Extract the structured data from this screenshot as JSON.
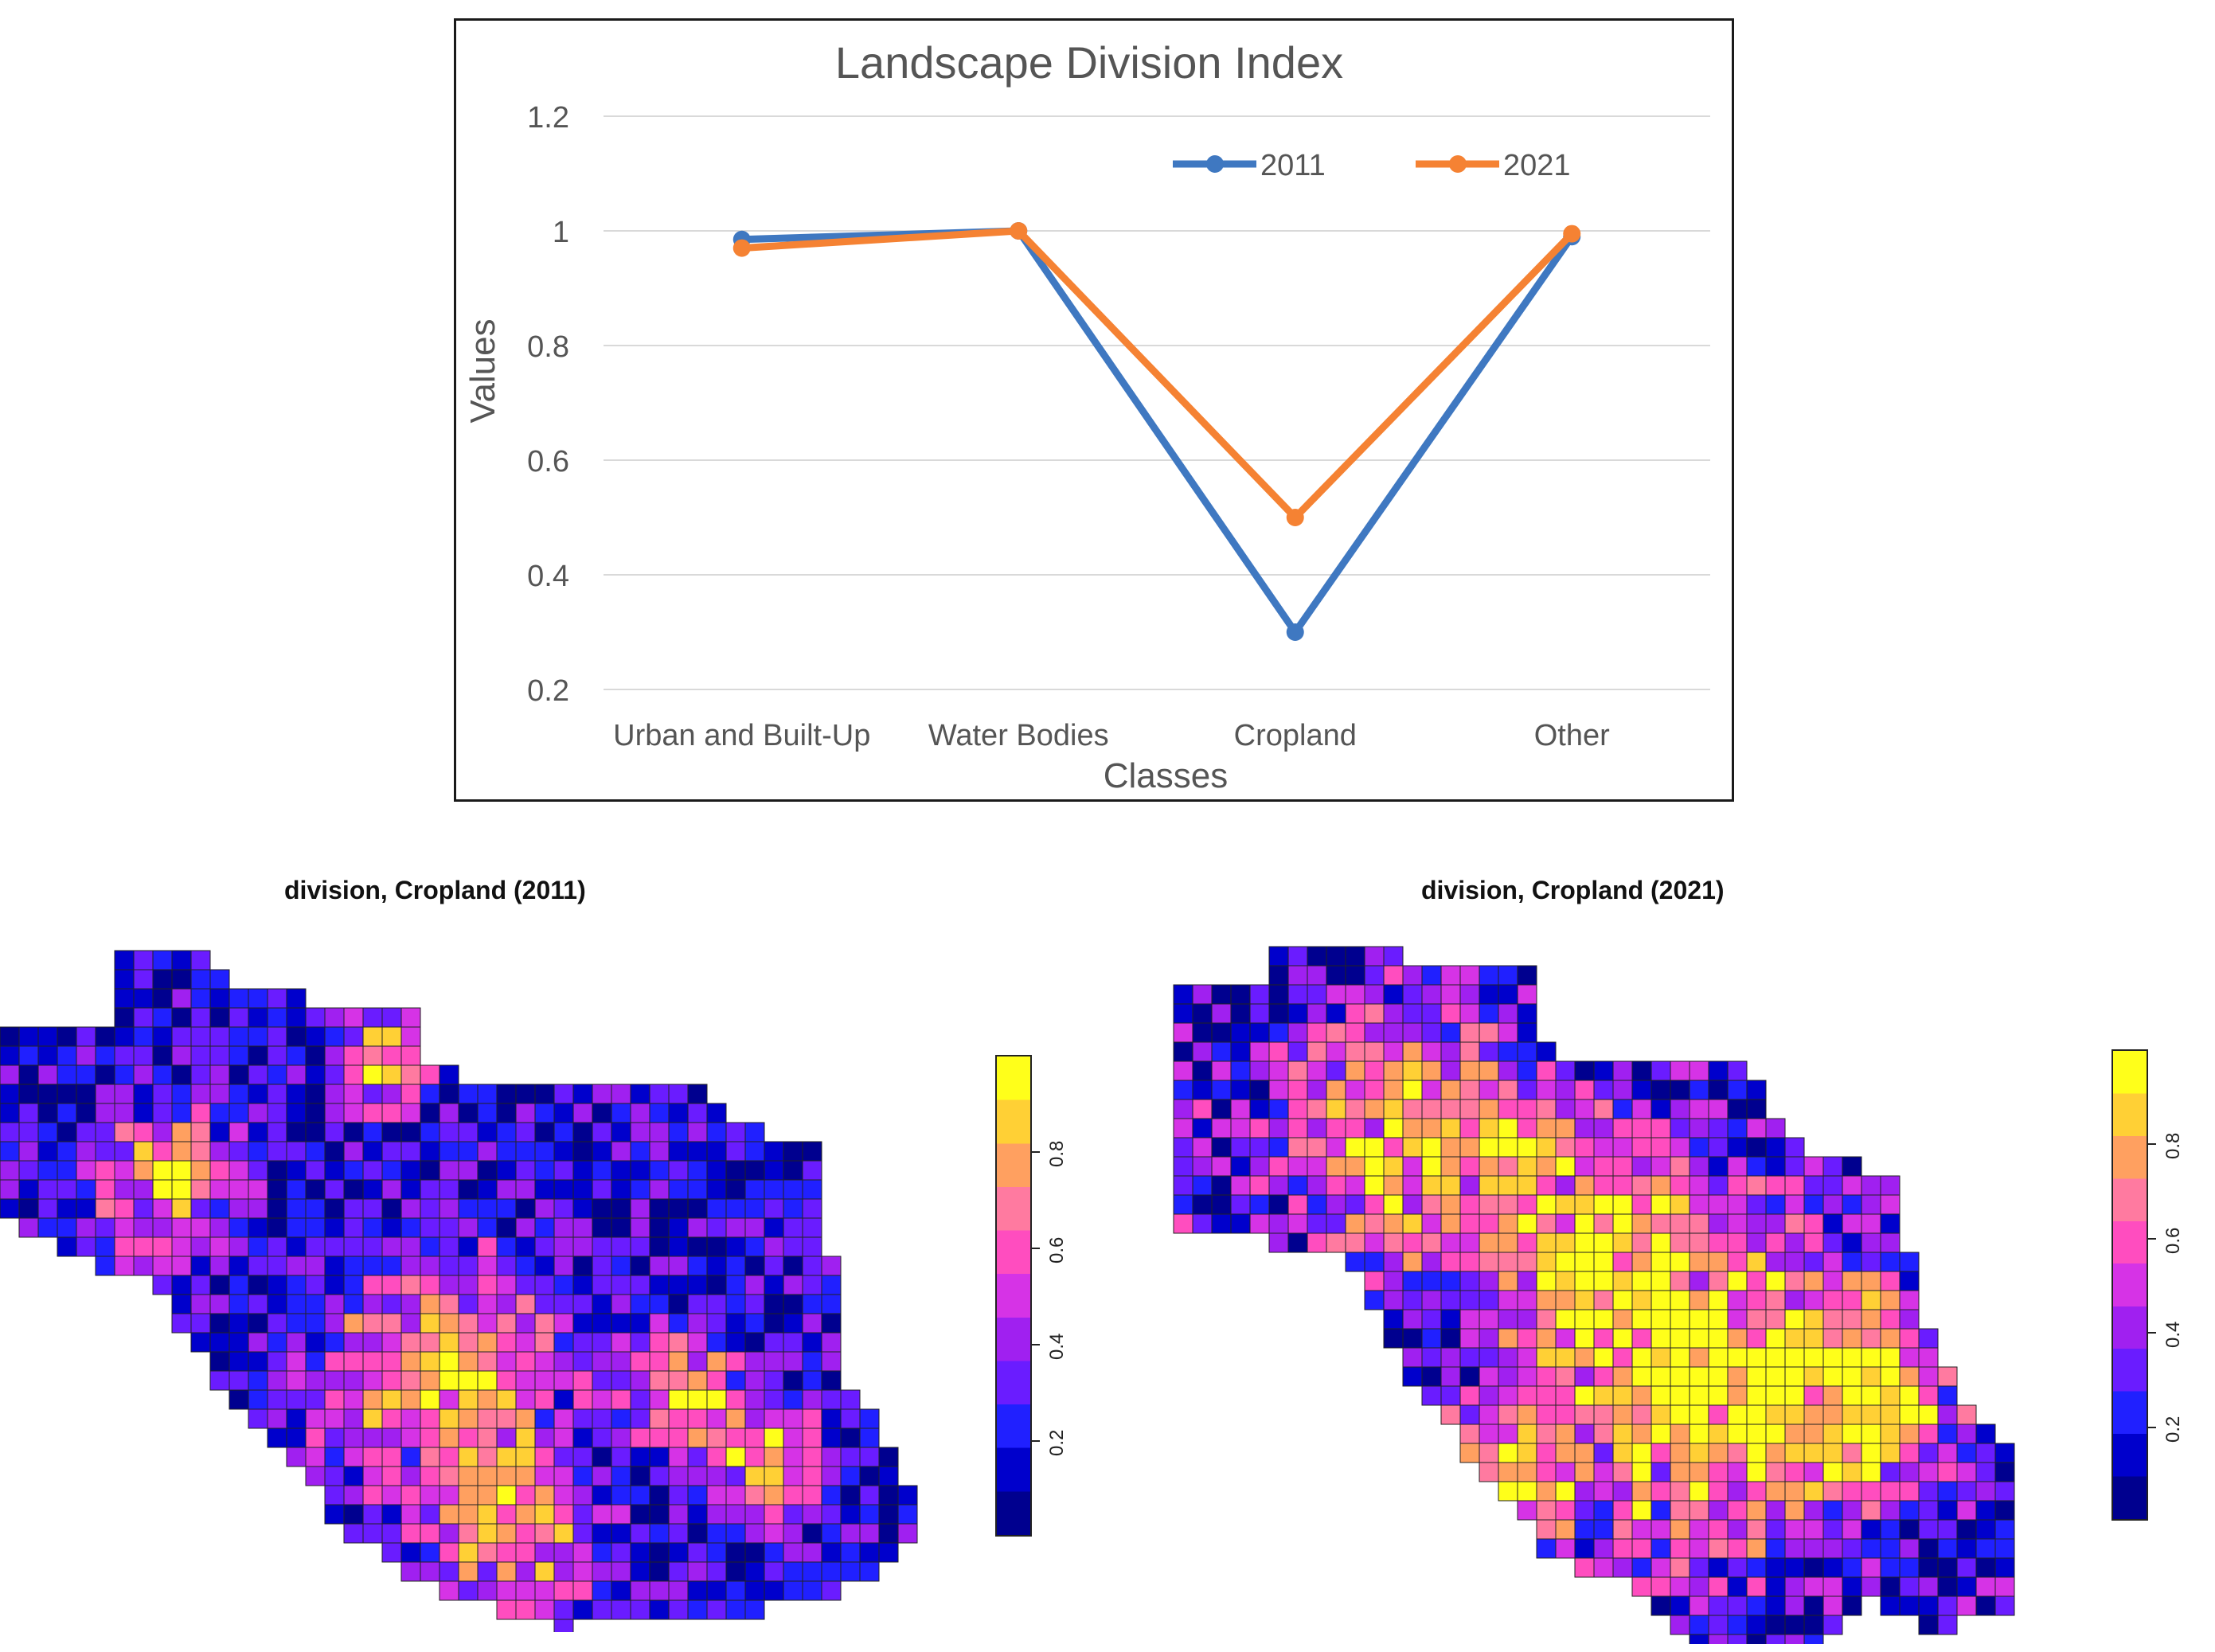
{
  "chart_data": [
    {
      "type": "line",
      "title": "Landscape Division Index",
      "xlabel": "Classes",
      "ylabel": "Values",
      "ylim": [
        0.2,
        1.2
      ],
      "yticks": [
        "0.2",
        "0.4",
        "0.6",
        "0.8",
        "1",
        "1.2"
      ],
      "grid": true,
      "legend_position": "top-right",
      "categories": [
        "Urban and Built-Up",
        "Water Bodies",
        "Cropland",
        "Other"
      ],
      "series": [
        {
          "name": "2011",
          "color": "#3f78c1",
          "values": [
            0.985,
            1.0,
            0.3,
            0.99
          ]
        },
        {
          "name": "2021",
          "color": "#f58233",
          "values": [
            0.97,
            1.0,
            0.5,
            0.995
          ]
        }
      ]
    },
    {
      "type": "heatmap",
      "title": "division, Cropland (2011)",
      "colorbar_ticks": [
        "0.2",
        "0.4",
        "0.6",
        "0.8"
      ],
      "colorbar_range": [
        0,
        1
      ]
    },
    {
      "type": "heatmap",
      "title": "division, Cropland (2021)",
      "colorbar_ticks": [
        "0.2",
        "0.4",
        "0.6",
        "0.8"
      ],
      "colorbar_range": [
        0,
        1
      ]
    }
  ]
}
